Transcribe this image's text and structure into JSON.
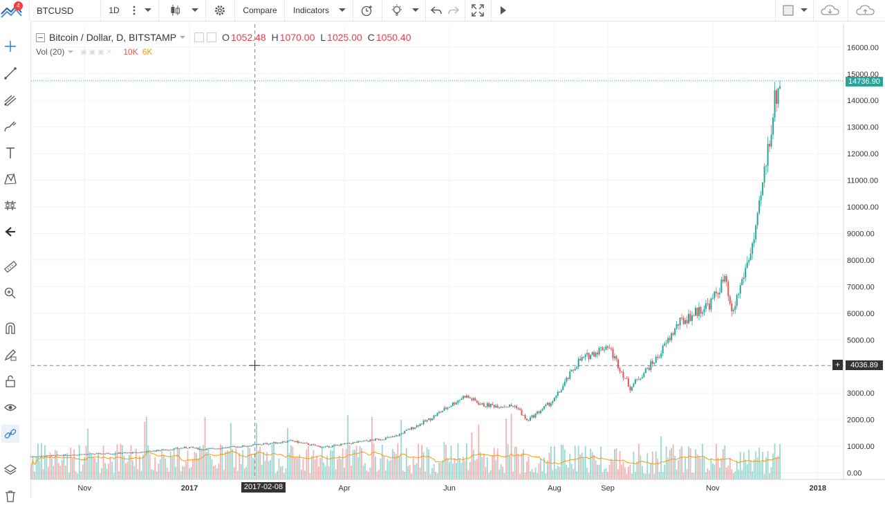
{
  "toolbar": {
    "notification_count": "4",
    "symbol": "BTCUSD",
    "interval": "1D",
    "compare_label": "Compare",
    "indicators_label": "Indicators"
  },
  "legend": {
    "title": "Bitcoin / Dollar, D, BITSTAMP",
    "o_label": "O",
    "o_value": "1052.48",
    "h_label": "H",
    "h_value": "1070.00",
    "l_label": "L",
    "l_value": "1025.00",
    "c_label": "C",
    "c_value": "1050.40"
  },
  "volume_legend": {
    "title": "Vol (20)",
    "value1": "10K",
    "value2": "6K"
  },
  "price_axis": {
    "ticks": [
      "16000.00",
      "15000.00",
      "14000.00",
      "13000.00",
      "12000.00",
      "11000.00",
      "10000.00",
      "9000.00",
      "8000.00",
      "7000.00",
      "6000.00",
      "5000.00",
      "4000.00",
      "3000.00",
      "2000.00",
      "1000.00",
      "0.00"
    ],
    "last_price": "14736.90",
    "crosshair_price": "4036.89"
  },
  "time_axis": {
    "ticks": [
      "Nov",
      "2017",
      "Apr",
      "Jun",
      "Aug",
      "Sep",
      "Nov",
      "2018"
    ],
    "crosshair_date": "2017-02-08"
  },
  "colors": {
    "up": "#26a69a",
    "down": "#ef5350",
    "volume_ma": "#ff9800",
    "last_price_line": "#26a69a",
    "crosshair_label": "#333333"
  },
  "left_tools": [
    "crosshair-icon",
    "trend-line-icon",
    "pitchfork-icon",
    "brush-icon",
    "text-icon",
    "pattern-icon",
    "prediction-icon",
    "back-arrow-icon",
    "ruler-icon",
    "zoom-icon",
    "magnet-icon",
    "lock-pencil-icon",
    "lock-icon",
    "eye-icon",
    "link-icon",
    "layers-icon",
    "trash-icon"
  ],
  "chart_data": {
    "type": "candlestick",
    "title": "Bitcoin / Dollar, D, BITSTAMP",
    "x_ticks": [
      "Nov",
      "2017",
      "Apr",
      "Jun",
      "Aug",
      "Sep",
      "Nov",
      "2018"
    ],
    "y_ticks": [
      0,
      1000,
      2000,
      3000,
      4000,
      5000,
      6000,
      7000,
      8000,
      9000,
      10000,
      11000,
      12000,
      13000,
      14000,
      15000,
      16000
    ],
    "ylim": [
      0,
      16500
    ],
    "price_path": [
      [
        "2016-10-01",
        610
      ],
      [
        "2016-11-01",
        700
      ],
      [
        "2016-12-01",
        760
      ],
      [
        "2017-01-01",
        960
      ],
      [
        "2017-01-08",
        880
      ],
      [
        "2017-02-01",
        1000
      ],
      [
        "2017-02-08",
        1050
      ],
      [
        "2017-03-01",
        1200
      ],
      [
        "2017-03-20",
        960
      ],
      [
        "2017-04-01",
        1080
      ],
      [
        "2017-04-30",
        1350
      ],
      [
        "2017-05-20",
        2000
      ],
      [
        "2017-06-10",
        2900
      ],
      [
        "2017-06-20",
        2550
      ],
      [
        "2017-07-10",
        2500
      ],
      [
        "2017-07-16",
        1950
      ],
      [
        "2017-08-01",
        2750
      ],
      [
        "2017-08-15",
        4200
      ],
      [
        "2017-09-01",
        4800
      ],
      [
        "2017-09-14",
        3200
      ],
      [
        "2017-09-30",
        4350
      ],
      [
        "2017-10-12",
        5600
      ],
      [
        "2017-10-31",
        6400
      ],
      [
        "2017-11-08",
        7300
      ],
      [
        "2017-11-12",
        5900
      ],
      [
        "2017-11-26",
        9000
      ],
      [
        "2017-12-07",
        14000
      ],
      [
        "2017-12-10",
        14736.9
      ]
    ],
    "last_price": 14736.9,
    "volume_ma_label": "Vol (20)"
  }
}
